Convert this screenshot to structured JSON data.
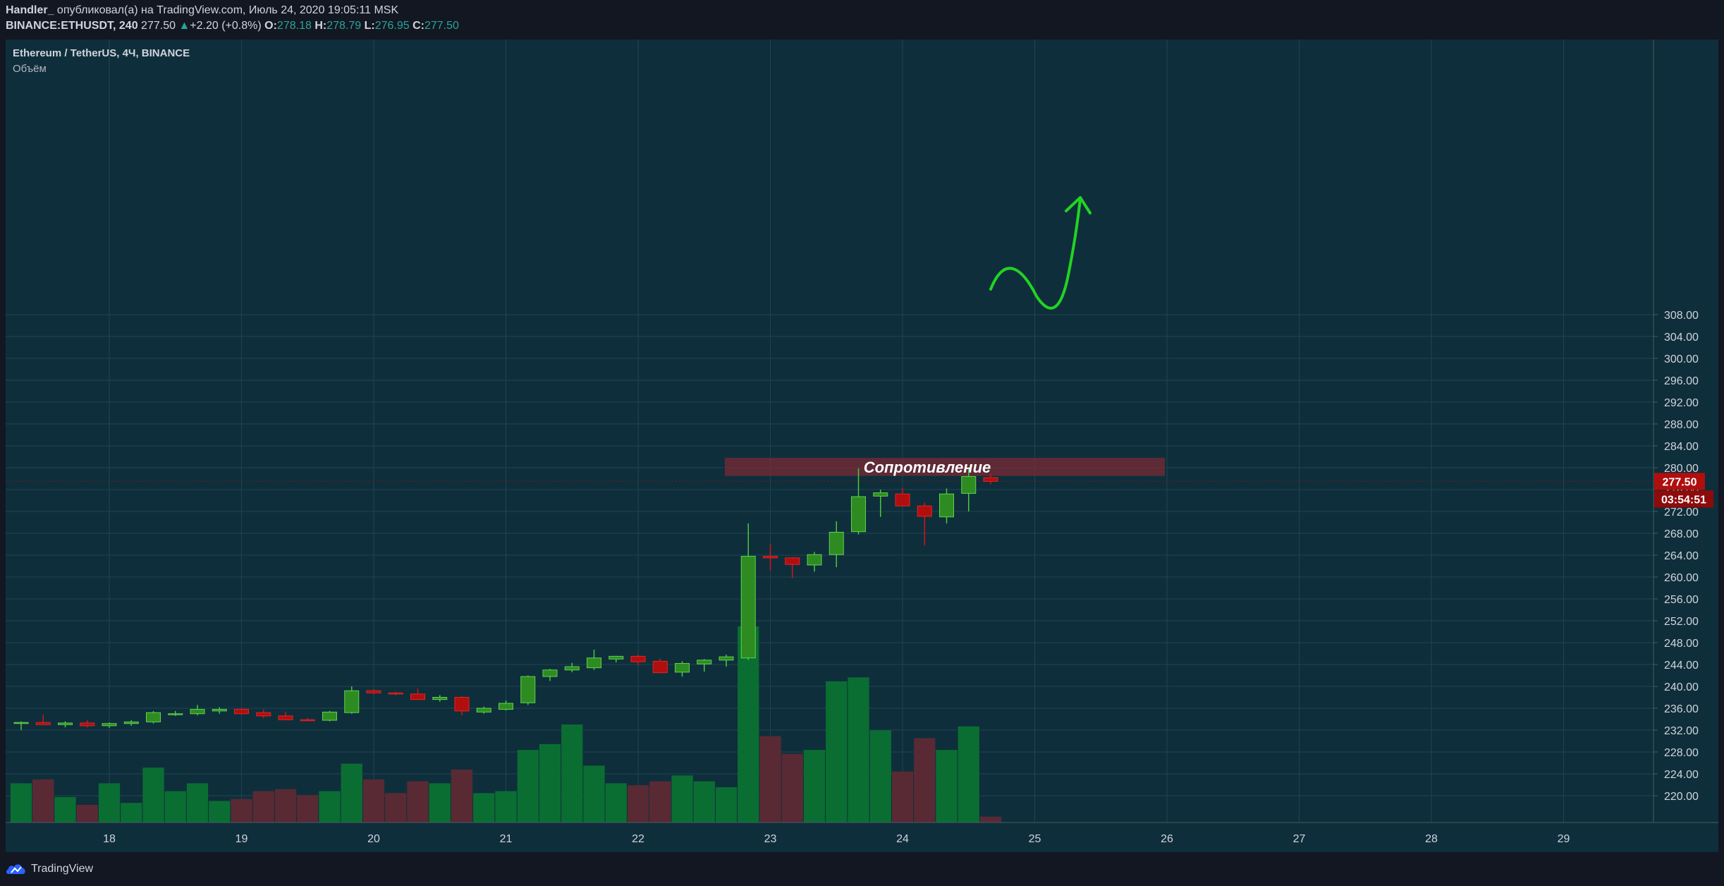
{
  "header": {
    "author": "Handler_",
    "published_text": "опубликовал(а) на TradingView.com, Июль 24, 2020 19:05:11 MSK",
    "symbol_text": "BINANCE:ETHUSDT, 240",
    "last": "277.50",
    "change_arrow": "▲",
    "change": "+2.20 (+0.8%)",
    "o_label": "O:",
    "o_value": "278.18",
    "h_label": "H:",
    "h_value": "278.79",
    "l_label": "L:",
    "l_value": "276.95",
    "c_label": "C:",
    "c_value": "277.50"
  },
  "chart_data": {
    "type": "candlestick",
    "title": "Ethereum / TetherUS, 4Ч, BINANCE",
    "subtitle": "Объём",
    "x_ticks": [
      "18",
      "19",
      "20",
      "21",
      "22",
      "23",
      "24",
      "25",
      "26",
      "27",
      "28",
      "29"
    ],
    "y_ticks": [
      "308.00",
      "304.00",
      "300.00",
      "296.00",
      "292.00",
      "288.00",
      "284.00",
      "280.00",
      "276.00",
      "272.00",
      "268.00",
      "264.00",
      "260.00",
      "256.00",
      "252.00",
      "248.00",
      "244.00",
      "240.00",
      "236.00",
      "232.00",
      "228.00",
      "224.00",
      "220.00"
    ],
    "ylim": [
      216.0,
      310.0
    ],
    "candles_ohlc": [
      [
        233.2,
        233.6,
        232.0,
        233.4
      ],
      [
        233.4,
        234.8,
        233.0,
        233.0
      ],
      [
        233.0,
        233.6,
        232.5,
        233.3
      ],
      [
        233.3,
        233.8,
        232.5,
        232.8
      ],
      [
        232.8,
        233.4,
        232.4,
        233.2
      ],
      [
        233.2,
        233.8,
        232.8,
        233.5
      ],
      [
        233.5,
        235.5,
        233.2,
        235.2
      ],
      [
        235.0,
        235.5,
        234.6,
        235.0
      ],
      [
        235.0,
        236.6,
        234.7,
        235.8
      ],
      [
        235.5,
        236.2,
        235.0,
        235.8
      ],
      [
        235.8,
        236.0,
        234.8,
        235.0
      ],
      [
        235.2,
        235.8,
        234.2,
        234.6
      ],
      [
        234.6,
        235.3,
        233.8,
        233.9
      ],
      [
        233.9,
        234.2,
        233.6,
        233.8
      ],
      [
        233.8,
        235.5,
        233.6,
        235.3
      ],
      [
        235.2,
        240.0,
        235.0,
        239.2
      ],
      [
        239.2,
        239.5,
        238.6,
        238.8
      ],
      [
        238.8,
        239.0,
        238.4,
        238.6
      ],
      [
        238.6,
        239.6,
        237.5,
        237.6
      ],
      [
        237.6,
        238.4,
        237.2,
        238.0
      ],
      [
        238.0,
        238.2,
        234.7,
        235.5
      ],
      [
        235.3,
        236.3,
        235.0,
        236.0
      ],
      [
        235.8,
        237.4,
        235.6,
        236.9
      ],
      [
        237.0,
        242.0,
        236.6,
        241.8
      ],
      [
        241.8,
        243.2,
        241.0,
        243.0
      ],
      [
        243.0,
        244.3,
        242.6,
        243.6
      ],
      [
        243.4,
        246.7,
        243.0,
        245.2
      ],
      [
        245.0,
        245.6,
        244.4,
        245.5
      ],
      [
        245.5,
        245.8,
        243.8,
        244.5
      ],
      [
        244.6,
        245.1,
        242.4,
        242.5
      ],
      [
        242.6,
        244.6,
        241.8,
        244.2
      ],
      [
        244.1,
        245.0,
        242.7,
        244.8
      ],
      [
        244.8,
        245.8,
        243.6,
        245.4
      ],
      [
        245.2,
        269.8,
        244.8,
        263.8
      ],
      [
        263.8,
        266.0,
        261.2,
        263.5
      ],
      [
        263.5,
        263.6,
        259.8,
        262.3
      ],
      [
        262.2,
        264.6,
        261.0,
        264.1
      ],
      [
        264.1,
        270.2,
        261.8,
        268.2
      ],
      [
        268.3,
        279.9,
        267.8,
        274.7
      ],
      [
        274.8,
        276.0,
        271.0,
        275.4
      ],
      [
        275.2,
        276.3,
        273.0,
        273.0
      ],
      [
        273.0,
        273.6,
        265.8,
        271.1
      ],
      [
        271.0,
        276.2,
        269.8,
        275.2
      ],
      [
        275.3,
        279.8,
        272.0,
        278.4
      ],
      [
        278.18,
        278.79,
        276.95,
        277.5
      ]
    ],
    "volume_relative": [
      0.2,
      0.22,
      0.13,
      0.09,
      0.2,
      0.1,
      0.28,
      0.16,
      0.2,
      0.11,
      0.12,
      0.16,
      0.17,
      0.14,
      0.16,
      0.3,
      0.22,
      0.15,
      0.21,
      0.2,
      0.27,
      0.15,
      0.16,
      0.37,
      0.4,
      0.5,
      0.29,
      0.2,
      0.19,
      0.21,
      0.24,
      0.21,
      0.18,
      1.0,
      0.44,
      0.35,
      0.37,
      0.72,
      0.74,
      0.47,
      0.26,
      0.43,
      0.37,
      0.49,
      0.03
    ],
    "first_candle_day": "17",
    "annotation_text": "Сопротивление",
    "resistance_zone": [
      278.5,
      281.8
    ],
    "last_price_label": "277.50",
    "countdown_label": "03:54:51",
    "colors": {
      "background": "#0f2e3b",
      "grid": "#1d4550",
      "up": "#2e8b22",
      "down": "#b10e0e",
      "vol_up": "#0a6e32",
      "vol_down": "#5a2a34",
      "zone": "#7a2a36",
      "arrow": "#22d323",
      "axis_text": "#d1d4dc"
    }
  },
  "footer": {
    "brand": "TradingView"
  }
}
